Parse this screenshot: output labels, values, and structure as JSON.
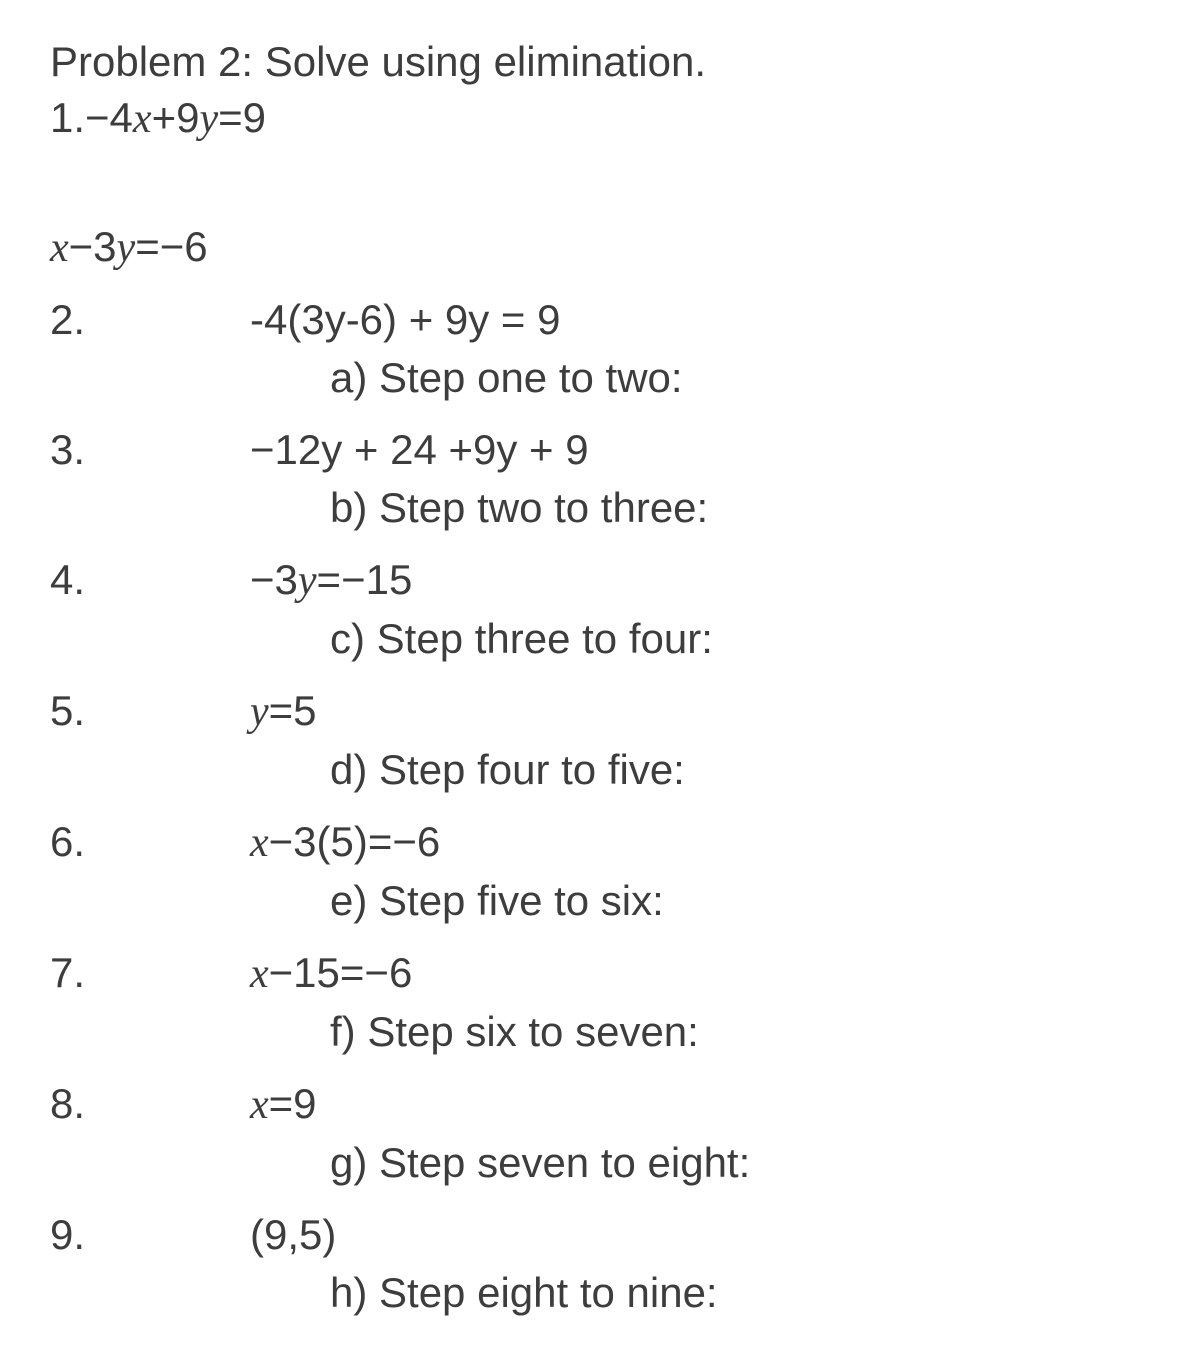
{
  "title": "Problem 2: Solve using elimination.",
  "lines": [
    {
      "type": "eq-numbered",
      "num": "1.",
      "content_html": "−4<span class='math-italic'>x</span>+9<span class='math-italic'>y</span>=9",
      "extraClass": ""
    },
    {
      "type": "eq-plain",
      "content_html": "<span class='math-italic'>x</span>−3<span class='math-italic'>y</span>=−6",
      "extraClass": "gap-top"
    },
    {
      "type": "step",
      "num": "2.",
      "content_html": "-4(3y-6) + 9y = 9"
    },
    {
      "type": "label",
      "text": "a) Step one to two:"
    },
    {
      "type": "step",
      "num": "3.",
      "content_html": "−12y + 24 +9y + 9"
    },
    {
      "type": "label",
      "text": "b) Step two to three:"
    },
    {
      "type": "step",
      "num": "4.",
      "content_html": "−3<span class='math-italic'>y</span>=−15"
    },
    {
      "type": "label",
      "text": "c) Step three to four:"
    },
    {
      "type": "step",
      "num": "5.",
      "content_html": "<span class='math-italic'>y</span>=5"
    },
    {
      "type": "label",
      "text": "d) Step four to five:"
    },
    {
      "type": "step",
      "num": "6.",
      "content_html": "<span class='math-italic'>x</span>−3(5)=−6"
    },
    {
      "type": "label",
      "text": "e) Step five to six:"
    },
    {
      "type": "step",
      "num": "7.",
      "content_html": "<span class='math-italic'>x</span>−15=−6"
    },
    {
      "type": "label",
      "text": "f) Step six to seven:"
    },
    {
      "type": "step",
      "num": "8.",
      "content_html": "<span class='math-italic'>x</span>=9"
    },
    {
      "type": "label",
      "text": "g) Step seven to eight:"
    },
    {
      "type": "step",
      "num": "9.",
      "content_html": "(9,5)"
    },
    {
      "type": "label",
      "text": "h) Step eight to nine:"
    }
  ],
  "colors": {
    "text": "#3d3d3d",
    "background": "#ffffff"
  },
  "typography": {
    "base_fontsize_pt": 32,
    "font_family": "-apple-system, Arial, sans-serif"
  }
}
